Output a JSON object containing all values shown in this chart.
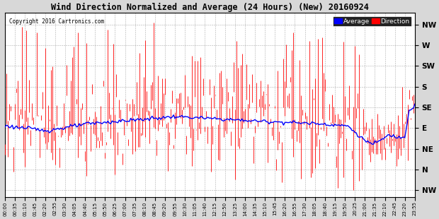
{
  "title": "Wind Direction Normalized and Average (24 Hours) (New) 20160924",
  "copyright": "Copyright 2016 Cartronics.com",
  "ytick_labels": [
    "NW",
    "W",
    "SW",
    "S",
    "SE",
    "E",
    "NE",
    "N",
    "NW"
  ],
  "ytick_values": [
    315,
    270,
    225,
    180,
    135,
    90,
    45,
    0,
    -45
  ],
  "ymin": -60,
  "ymax": 340,
  "background_color": "#d8d8d8",
  "plot_bg_color": "#ffffff",
  "grid_color": "#999999",
  "red_color": "#ff0000",
  "blue_color": "#0000ff",
  "legend_avg_bg": "#0000ff",
  "legend_dir_bg": "#ff0000",
  "legend_avg_text": "Average",
  "legend_dir_text": "Direction"
}
